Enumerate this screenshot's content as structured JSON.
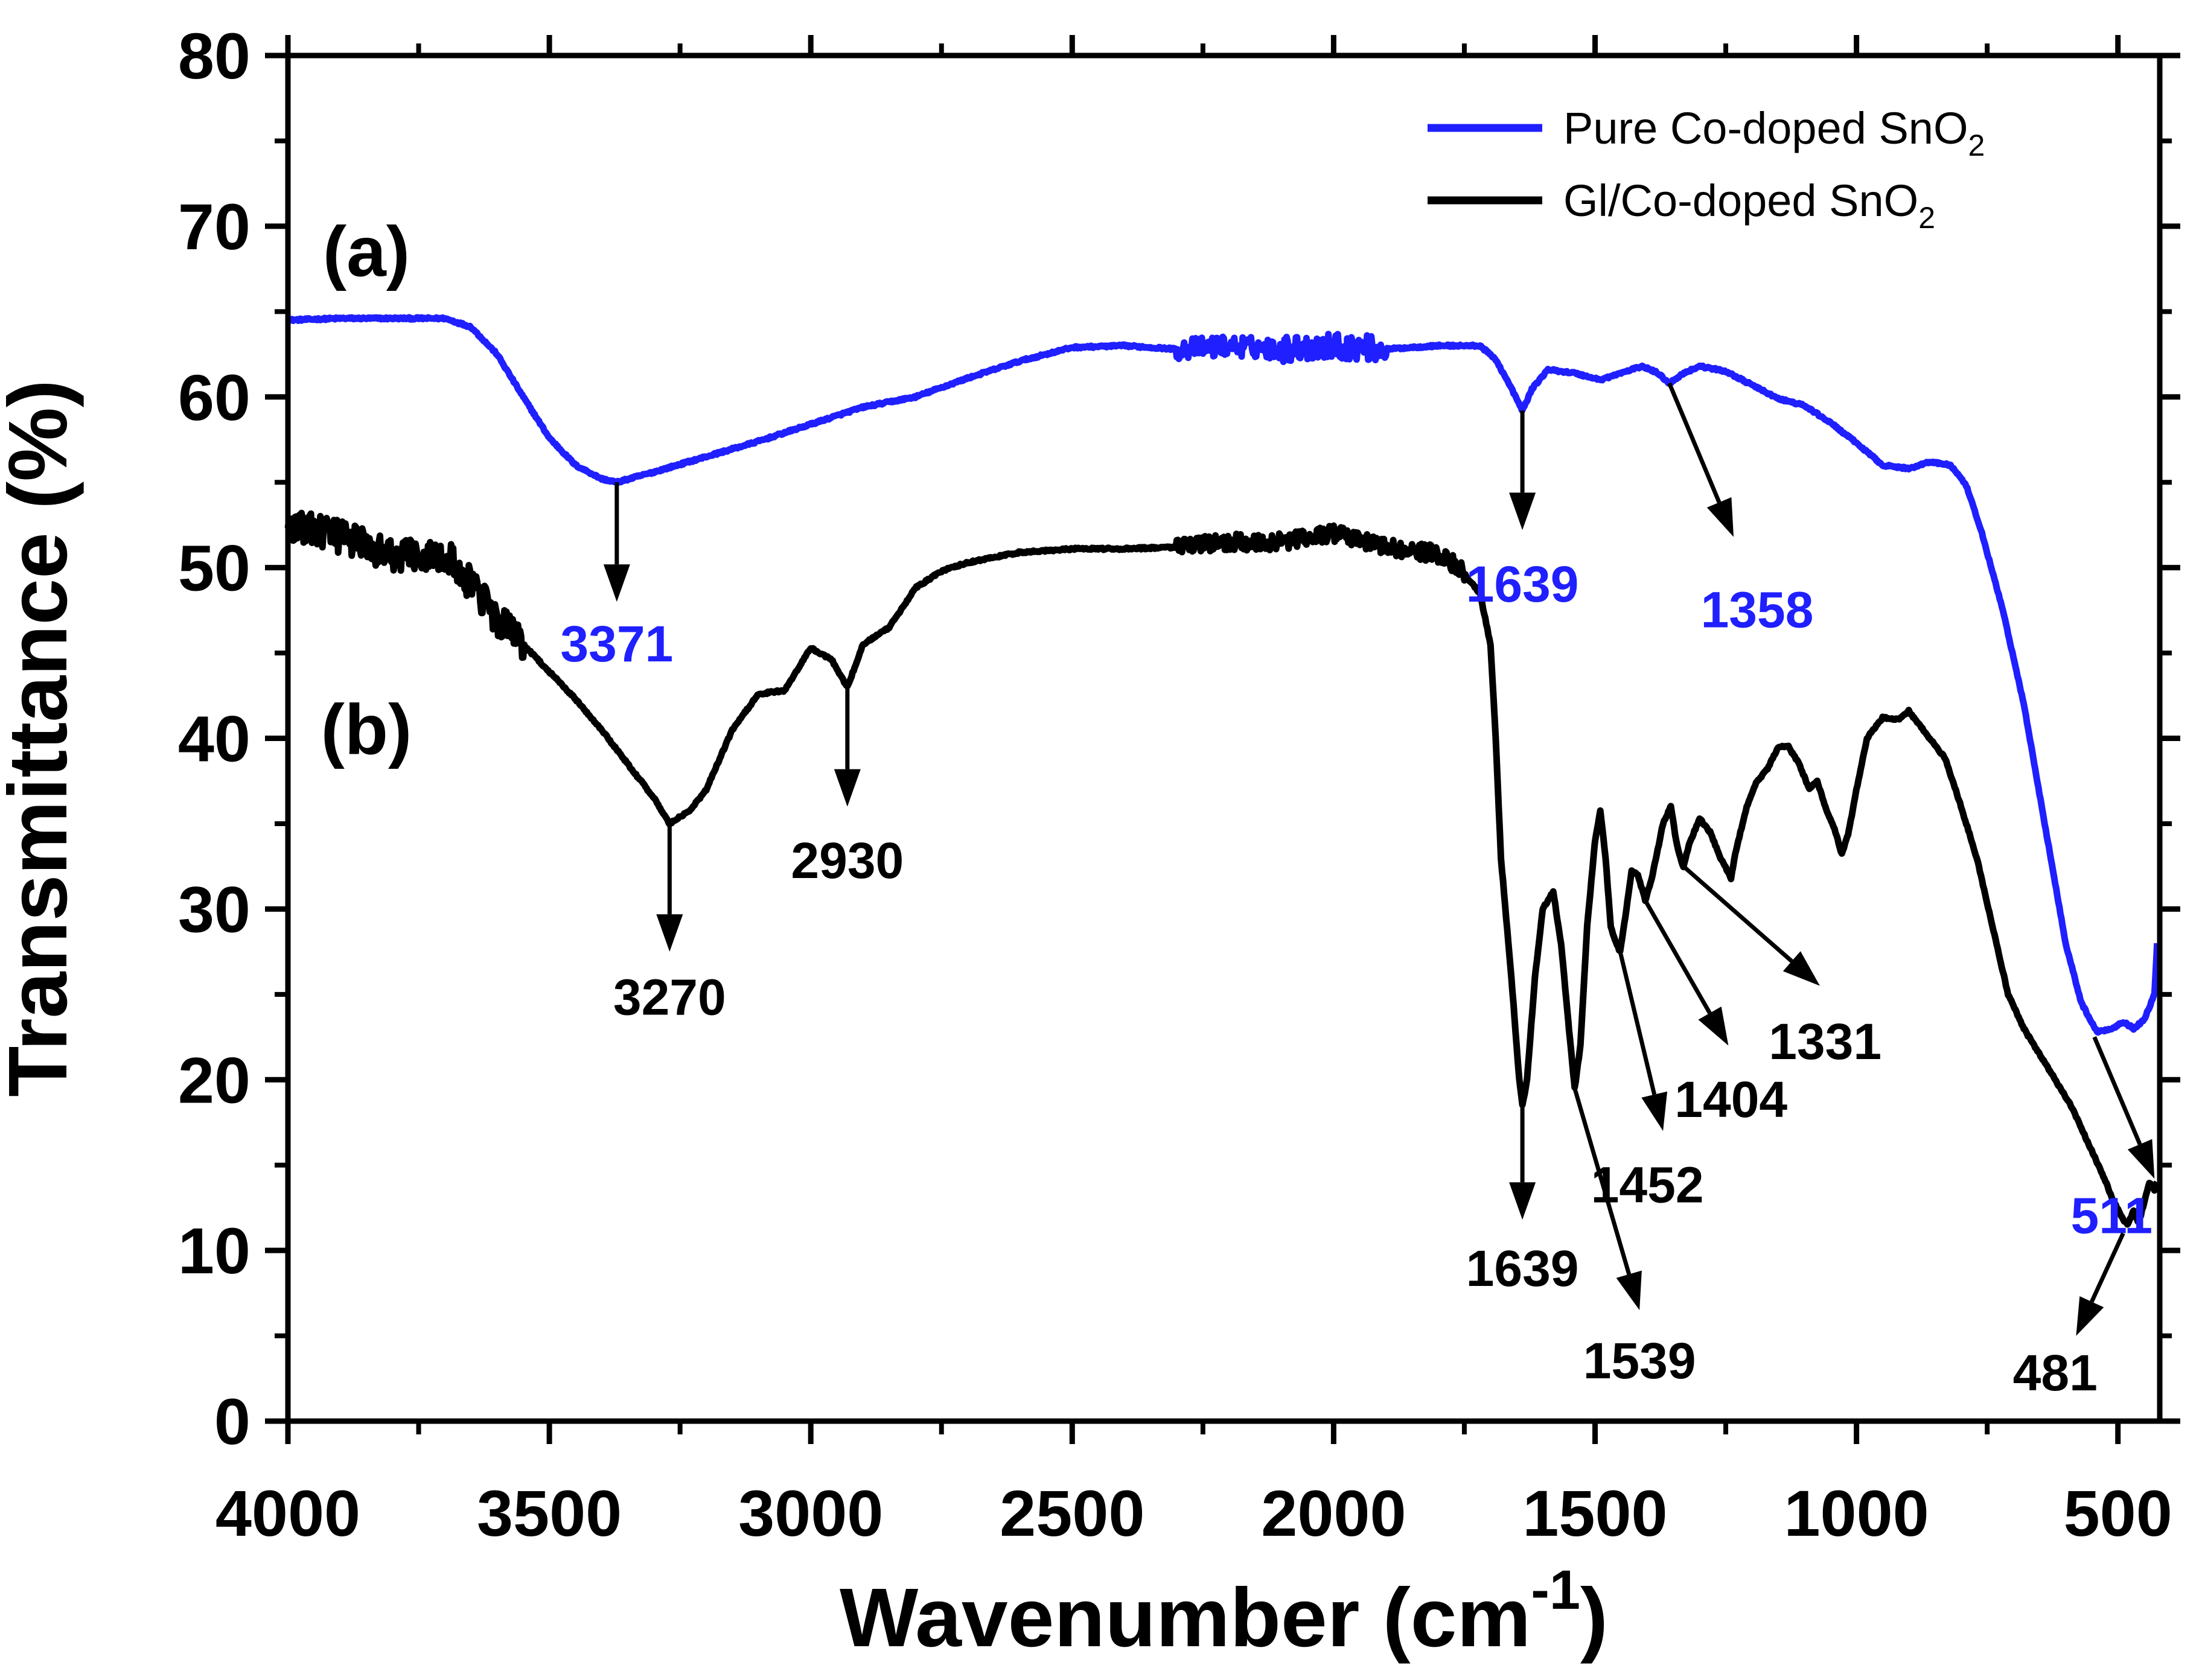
{
  "chart_data": {
    "type": "line",
    "xlabel": "Wavenumber (cm",
    "xlabel_sup": "-1",
    "xlabel_tail": ")",
    "ylabel": "Transmittance (%)",
    "xlim": [
      4000,
      420
    ],
    "ylim": [
      0,
      80
    ],
    "x_ticks": [
      4000,
      3500,
      3000,
      2500,
      2000,
      1500,
      1000,
      500
    ],
    "y_ticks": [
      0,
      10,
      20,
      30,
      40,
      50,
      60,
      70,
      80
    ],
    "legend_position": "top-right",
    "panel_labels": [
      {
        "text": "(a)",
        "x": 3850,
        "y": 68.5
      },
      {
        "text": "(b)",
        "x": 3850,
        "y": 40.5
      }
    ],
    "series": [
      {
        "name": "Pure Co-doped SnO",
        "name_sub": "2",
        "color": "#1f1fff",
        "noisy": [
          [
            2300,
            2100,
            1.2
          ],
          [
            2100,
            1900,
            1.5
          ]
        ],
        "points": [
          [
            4000,
            64.5
          ],
          [
            3900,
            64.6
          ],
          [
            3800,
            64.6
          ],
          [
            3700,
            64.6
          ],
          [
            3650,
            64.1
          ],
          [
            3600,
            62.5
          ],
          [
            3550,
            60.0
          ],
          [
            3500,
            57.6
          ],
          [
            3450,
            56.0
          ],
          [
            3400,
            55.2
          ],
          [
            3371,
            55.0
          ],
          [
            3300,
            55.6
          ],
          [
            3200,
            56.5
          ],
          [
            3100,
            57.4
          ],
          [
            3000,
            58.4
          ],
          [
            2900,
            59.4
          ],
          [
            2800,
            60.0
          ],
          [
            2700,
            61.1
          ],
          [
            2600,
            62.1
          ],
          [
            2500,
            62.9
          ],
          [
            2400,
            63.0
          ],
          [
            2300,
            62.8
          ],
          [
            2200,
            63.0
          ],
          [
            2100,
            62.8
          ],
          [
            2000,
            63.0
          ],
          [
            1900,
            62.8
          ],
          [
            1800,
            63.0
          ],
          [
            1720,
            63.0
          ],
          [
            1690,
            62.2
          ],
          [
            1660,
            60.5
          ],
          [
            1639,
            59.2
          ],
          [
            1620,
            60.5
          ],
          [
            1590,
            61.6
          ],
          [
            1540,
            61.4
          ],
          [
            1490,
            61.0
          ],
          [
            1440,
            61.5
          ],
          [
            1410,
            61.8
          ],
          [
            1380,
            61.4
          ],
          [
            1358,
            60.8
          ],
          [
            1330,
            61.4
          ],
          [
            1300,
            61.8
          ],
          [
            1250,
            61.5
          ],
          [
            1200,
            60.7
          ],
          [
            1150,
            59.9
          ],
          [
            1100,
            59.5
          ],
          [
            1050,
            58.5
          ],
          [
            1000,
            57.3
          ],
          [
            950,
            56.0
          ],
          [
            900,
            55.8
          ],
          [
            860,
            56.2
          ],
          [
            820,
            56.0
          ],
          [
            790,
            54.8
          ],
          [
            760,
            52.0
          ],
          [
            720,
            47.5
          ],
          [
            680,
            42.0
          ],
          [
            640,
            35.0
          ],
          [
            600,
            28.0
          ],
          [
            570,
            24.5
          ],
          [
            540,
            22.8
          ],
          [
            511,
            23.0
          ],
          [
            490,
            23.4
          ],
          [
            470,
            23.0
          ],
          [
            450,
            23.5
          ],
          [
            430,
            25.0
          ],
          [
            425,
            28.0
          ]
        ]
      },
      {
        "name": "Gl/Co-doped SnO",
        "name_sub": "2",
        "color": "#000000",
        "noisy": [
          [
            4000,
            3550,
            2.0
          ],
          [
            2300,
            1750,
            1.0
          ]
        ],
        "points": [
          [
            4000,
            52.5
          ],
          [
            3900,
            51.8
          ],
          [
            3800,
            50.8
          ],
          [
            3700,
            50.8
          ],
          [
            3650,
            49.0
          ],
          [
            3600,
            47.0
          ],
          [
            3550,
            45.5
          ],
          [
            3500,
            43.9
          ],
          [
            3450,
            42.3
          ],
          [
            3400,
            40.5
          ],
          [
            3350,
            38.5
          ],
          [
            3300,
            36.5
          ],
          [
            3270,
            35.0
          ],
          [
            3230,
            35.8
          ],
          [
            3200,
            37.0
          ],
          [
            3150,
            40.5
          ],
          [
            3100,
            42.6
          ],
          [
            3050,
            42.8
          ],
          [
            3000,
            45.3
          ],
          [
            2960,
            44.6
          ],
          [
            2930,
            43.0
          ],
          [
            2900,
            45.5
          ],
          [
            2850,
            46.5
          ],
          [
            2800,
            48.8
          ],
          [
            2750,
            49.8
          ],
          [
            2700,
            50.3
          ],
          [
            2600,
            50.9
          ],
          [
            2500,
            51.1
          ],
          [
            2400,
            51.1
          ],
          [
            2300,
            51.2
          ],
          [
            2200,
            51.5
          ],
          [
            2100,
            51.5
          ],
          [
            2000,
            52.0
          ],
          [
            1900,
            51.2
          ],
          [
            1800,
            50.8
          ],
          [
            1760,
            50.0
          ],
          [
            1720,
            48.5
          ],
          [
            1700,
            45.5
          ],
          [
            1690,
            40.0
          ],
          [
            1680,
            33.0
          ],
          [
            1660,
            26.0
          ],
          [
            1645,
            20.0
          ],
          [
            1639,
            18.5
          ],
          [
            1630,
            20.0
          ],
          [
            1615,
            26.0
          ],
          [
            1600,
            30.0
          ],
          [
            1580,
            31.0
          ],
          [
            1565,
            28.0
          ],
          [
            1550,
            23.0
          ],
          [
            1539,
            19.5
          ],
          [
            1528,
            22.0
          ],
          [
            1515,
            29.0
          ],
          [
            1500,
            34.0
          ],
          [
            1490,
            35.8
          ],
          [
            1480,
            33.0
          ],
          [
            1470,
            29.0
          ],
          [
            1460,
            28.0
          ],
          [
            1452,
            27.5
          ],
          [
            1440,
            30.0
          ],
          [
            1430,
            32.2
          ],
          [
            1418,
            32.0
          ],
          [
            1404,
            30.5
          ],
          [
            1390,
            32.0
          ],
          [
            1370,
            35.0
          ],
          [
            1355,
            36.0
          ],
          [
            1345,
            34.0
          ],
          [
            1335,
            32.8
          ],
          [
            1331,
            32.5
          ],
          [
            1320,
            33.8
          ],
          [
            1300,
            35.3
          ],
          [
            1280,
            34.5
          ],
          [
            1260,
            33.0
          ],
          [
            1240,
            31.8
          ],
          [
            1230,
            33.5
          ],
          [
            1210,
            36.0
          ],
          [
            1190,
            37.5
          ],
          [
            1170,
            38.2
          ],
          [
            1150,
            39.5
          ],
          [
            1130,
            39.5
          ],
          [
            1110,
            38.5
          ],
          [
            1090,
            37.0
          ],
          [
            1075,
            37.5
          ],
          [
            1060,
            36.0
          ],
          [
            1040,
            34.5
          ],
          [
            1028,
            33.2
          ],
          [
            1015,
            34.5
          ],
          [
            1000,
            37.0
          ],
          [
            980,
            40.0
          ],
          [
            950,
            41.2
          ],
          [
            920,
            41.1
          ],
          [
            900,
            41.6
          ],
          [
            880,
            40.8
          ],
          [
            860,
            40.0
          ],
          [
            830,
            38.8
          ],
          [
            800,
            36.0
          ],
          [
            770,
            33.0
          ],
          [
            740,
            29.0
          ],
          [
            710,
            25.0
          ],
          [
            680,
            23.0
          ],
          [
            650,
            21.5
          ],
          [
            620,
            20.0
          ],
          [
            590,
            18.5
          ],
          [
            560,
            16.5
          ],
          [
            530,
            14.5
          ],
          [
            510,
            13.0
          ],
          [
            490,
            11.8
          ],
          [
            481,
            11.5
          ],
          [
            470,
            12.3
          ],
          [
            460,
            11.6
          ],
          [
            450,
            12.8
          ],
          [
            440,
            14.0
          ],
          [
            430,
            13.5
          ],
          [
            425,
            14.0
          ]
        ]
      }
    ],
    "annotations": [
      {
        "text": "3371",
        "color": "#1f1fff",
        "x0": 3371,
        "y0": 55.0,
        "x1": 3371,
        "y1": 48.0,
        "tx": 3371,
        "ty": 45.5
      },
      {
        "text": "1639",
        "color": "#1f1fff",
        "x0": 1639,
        "y0": 59.2,
        "x1": 1639,
        "y1": 52.2,
        "tx": 1639,
        "ty": 49.0
      },
      {
        "text": "1358",
        "color": "#1f1fff",
        "x0": 1358,
        "y0": 60.8,
        "x1": 1235,
        "y1": 51.8,
        "tx": 1190,
        "ty": 47.5
      },
      {
        "text": "511",
        "color": "#1f1fff",
        "x0": 545,
        "y0": 22.5,
        "x1": 430,
        "y1": 14.2,
        "tx": 512,
        "ty": 12.0
      },
      {
        "text": "3270",
        "color": "#000000",
        "x0": 3270,
        "y0": 35.0,
        "x1": 3270,
        "y1": 27.5,
        "tx": 3270,
        "ty": 24.8
      },
      {
        "text": "2930",
        "color": "#000000",
        "x0": 2930,
        "y0": 43.0,
        "x1": 2930,
        "y1": 36.0,
        "tx": 2930,
        "ty": 32.8
      },
      {
        "text": "1639",
        "color": "#000000",
        "x0": 1639,
        "y0": 18.5,
        "x1": 1639,
        "y1": 11.8,
        "tx": 1639,
        "ty": 8.9
      },
      {
        "text": "1539",
        "color": "#000000",
        "x0": 1539,
        "y0": 19.5,
        "x1": 1415,
        "y1": 6.5,
        "tx": 1415,
        "ty": 3.5
      },
      {
        "text": "1452",
        "color": "#000000",
        "x0": 1452,
        "y0": 27.5,
        "x1": 1370,
        "y1": 17.0,
        "tx": 1400,
        "ty": 13.8
      },
      {
        "text": "1404",
        "color": "#000000",
        "x0": 1404,
        "y0": 30.5,
        "x1": 1245,
        "y1": 22.0,
        "tx": 1240,
        "ty": 18.8
      },
      {
        "text": "1331",
        "color": "#000000",
        "x0": 1331,
        "y0": 32.5,
        "x1": 1070,
        "y1": 25.5,
        "tx": 1060,
        "ty": 22.2
      },
      {
        "text": "481",
        "color": "#000000",
        "x0": 490,
        "y0": 11.0,
        "x1": 580,
        "y1": 5.0,
        "tx": 620,
        "ty": 2.8
      }
    ]
  }
}
